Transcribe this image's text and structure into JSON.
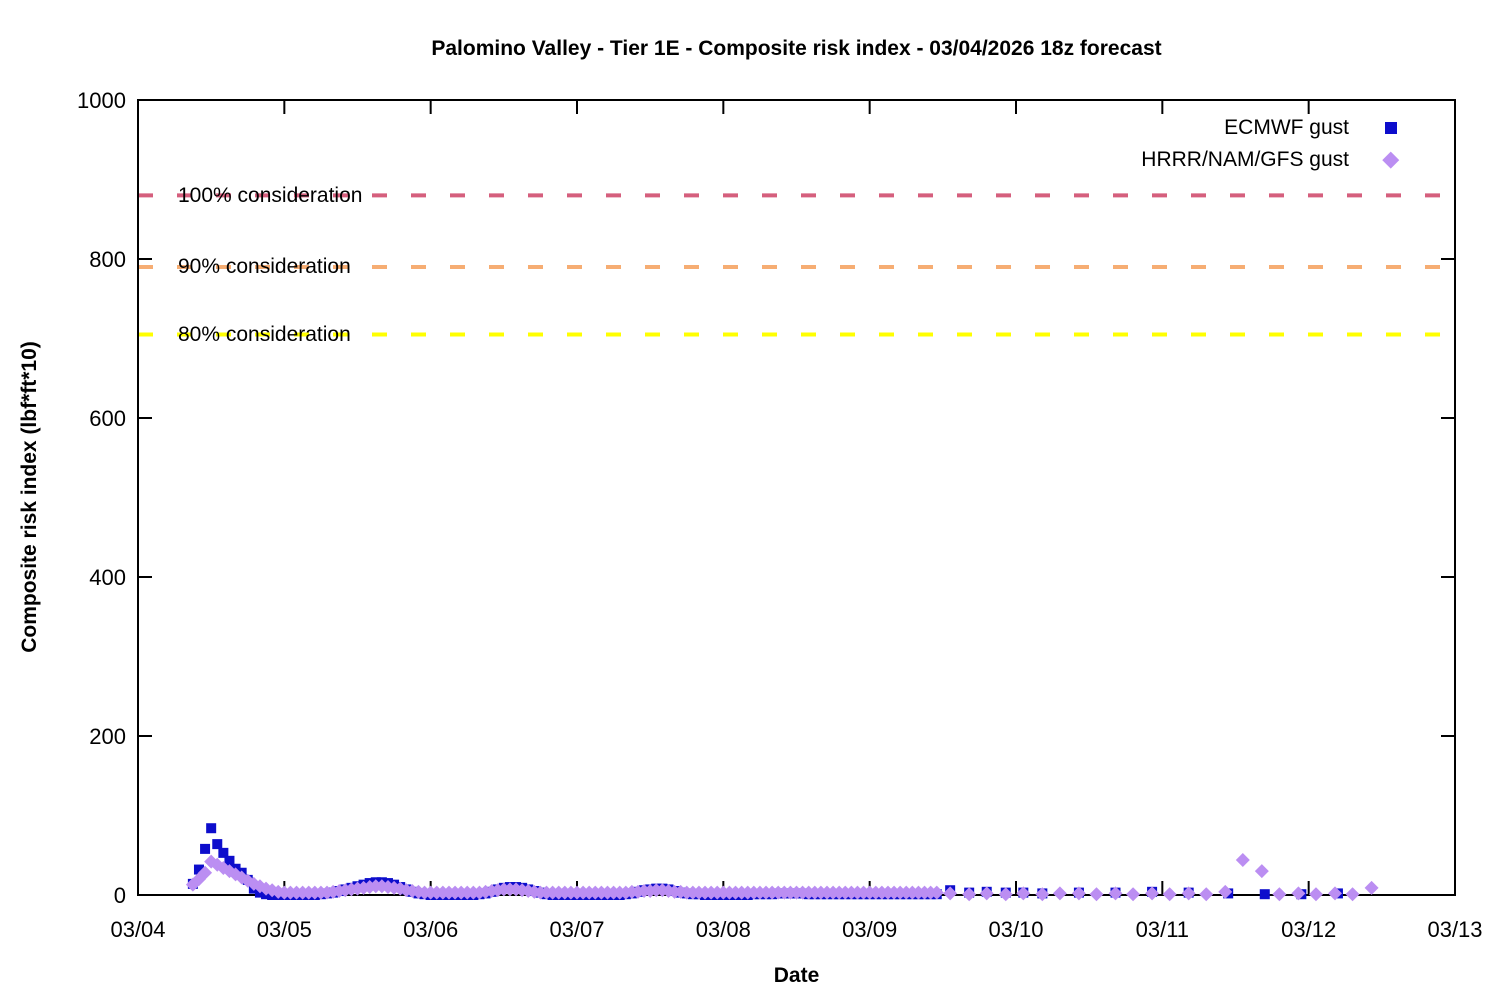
{
  "title": "Palomino Valley - Tier 1E - Composite risk index - 03/04/2026 18z forecast",
  "axes": {
    "x_label": "Date",
    "y_label": "Composite risk index (lbf*ft*10)",
    "x_ticks": [
      "03/04",
      "03/05",
      "03/06",
      "03/07",
      "03/08",
      "03/09",
      "03/10",
      "03/11",
      "03/12",
      "03/13"
    ],
    "y_ticks": [
      "0",
      "200",
      "400",
      "600",
      "800",
      "1000"
    ]
  },
  "legend": [
    {
      "label": "ECMWF gust",
      "marker": "square",
      "color": "#0d0dcc"
    },
    {
      "label": "HRRR/NAM/GFS gust",
      "marker": "diamond",
      "color": "#bb8ef2"
    }
  ],
  "chart_data": {
    "type": "scatter",
    "title": "Palomino Valley - Tier 1E - Composite risk index - 03/04/2026 18z forecast",
    "xlabel": "Date",
    "ylabel": "Composite risk index (lbf*ft*10)",
    "x_unit": "days since 03/04 00:00",
    "xlim": [
      0,
      9
    ],
    "ylim": [
      0,
      1000
    ],
    "grid": false,
    "legend_position": "top-right-inside",
    "thresholds": [
      {
        "label": "100% consideration",
        "value": 880,
        "color": "#d55f7d",
        "style": "dashed"
      },
      {
        "label": "90% consideration",
        "value": 790,
        "color": "#f6ad73",
        "style": "dashed"
      },
      {
        "label": "80% consideration",
        "value": 705,
        "color": "#ffff00",
        "style": "dashed"
      }
    ],
    "series": [
      {
        "name": "ECMWF gust",
        "marker": "square",
        "color": "#0d0dcc",
        "dense": {
          "start_day": 0.375,
          "step_day": 0.0416667,
          "values": [
            14,
            32,
            58,
            84,
            64,
            53,
            43,
            33,
            28,
            19,
            8,
            3,
            1,
            0,
            0,
            0,
            0,
            0,
            0,
            0,
            0,
            1,
            2,
            3,
            5,
            7,
            9,
            11,
            13,
            15,
            16,
            16,
            15,
            13,
            10,
            7,
            4,
            2,
            1,
            0,
            0,
            0,
            0,
            0,
            0,
            0,
            0,
            1,
            2,
            4,
            7,
            9,
            10,
            10,
            9,
            7,
            5,
            3,
            1,
            0,
            0,
            0,
            0,
            0,
            0,
            0,
            0,
            0,
            0,
            0,
            0,
            1,
            2,
            4,
            6,
            7,
            8,
            8,
            7,
            5,
            3,
            2,
            1,
            1,
            0,
            0,
            0,
            0,
            0,
            0,
            0,
            0,
            1,
            1,
            1,
            1,
            2,
            2,
            2,
            2,
            2,
            1,
            1,
            1,
            1,
            1,
            1,
            1,
            1,
            1,
            1,
            1,
            1,
            1,
            1,
            1,
            1,
            1,
            1,
            1,
            1,
            1,
            1
          ]
        },
        "points": [
          [
            5.55,
            6
          ],
          [
            5.68,
            3
          ],
          [
            5.8,
            4
          ],
          [
            5.93,
            3
          ],
          [
            6.05,
            3
          ],
          [
            6.18,
            2
          ],
          [
            6.43,
            3
          ],
          [
            6.68,
            3
          ],
          [
            6.93,
            4
          ],
          [
            7.18,
            3
          ],
          [
            7.45,
            2
          ],
          [
            7.7,
            1
          ],
          [
            7.95,
            1
          ],
          [
            8.2,
            2
          ]
        ]
      },
      {
        "name": "HRRR/NAM/GFS gust",
        "marker": "diamond",
        "color": "#bb8ef2",
        "dense": {
          "start_day": 0.375,
          "step_day": 0.0416667,
          "values": [
            13,
            20,
            28,
            42,
            38,
            34,
            30,
            26,
            22,
            18,
            14,
            11,
            8,
            6,
            4,
            3,
            3,
            3,
            3,
            3,
            3,
            3,
            3,
            4,
            5,
            6,
            7,
            8,
            9,
            10,
            11,
            11,
            10,
            9,
            8,
            6,
            5,
            4,
            3,
            3,
            3,
            3,
            3,
            3,
            3,
            3,
            3,
            3,
            4,
            5,
            6,
            7,
            7,
            7,
            6,
            5,
            4,
            3,
            3,
            3,
            3,
            3,
            3,
            3,
            3,
            3,
            3,
            3,
            3,
            3,
            3,
            3,
            4,
            4,
            5,
            5,
            6,
            6,
            5,
            4,
            4,
            3,
            3,
            3,
            3,
            3,
            3,
            3,
            3,
            3,
            3,
            3,
            3,
            3,
            3,
            3,
            3,
            3,
            3,
            3,
            3,
            3,
            3,
            3,
            3,
            3,
            3,
            3,
            3,
            3,
            3,
            3,
            3,
            3,
            3,
            3,
            3,
            3,
            3,
            3,
            3,
            3,
            3
          ]
        },
        "points": [
          [
            5.55,
            2
          ],
          [
            5.68,
            1
          ],
          [
            5.8,
            2
          ],
          [
            5.93,
            1
          ],
          [
            6.05,
            2
          ],
          [
            6.18,
            1
          ],
          [
            6.3,
            2
          ],
          [
            6.43,
            2
          ],
          [
            6.55,
            1
          ],
          [
            6.68,
            2
          ],
          [
            6.8,
            1
          ],
          [
            6.93,
            2
          ],
          [
            7.05,
            1
          ],
          [
            7.18,
            2
          ],
          [
            7.3,
            1
          ],
          [
            7.43,
            4
          ],
          [
            7.55,
            44
          ],
          [
            7.68,
            30
          ],
          [
            7.8,
            1
          ],
          [
            7.93,
            2
          ],
          [
            8.05,
            1
          ],
          [
            8.18,
            2
          ],
          [
            8.3,
            1
          ],
          [
            8.43,
            9
          ]
        ]
      }
    ]
  }
}
